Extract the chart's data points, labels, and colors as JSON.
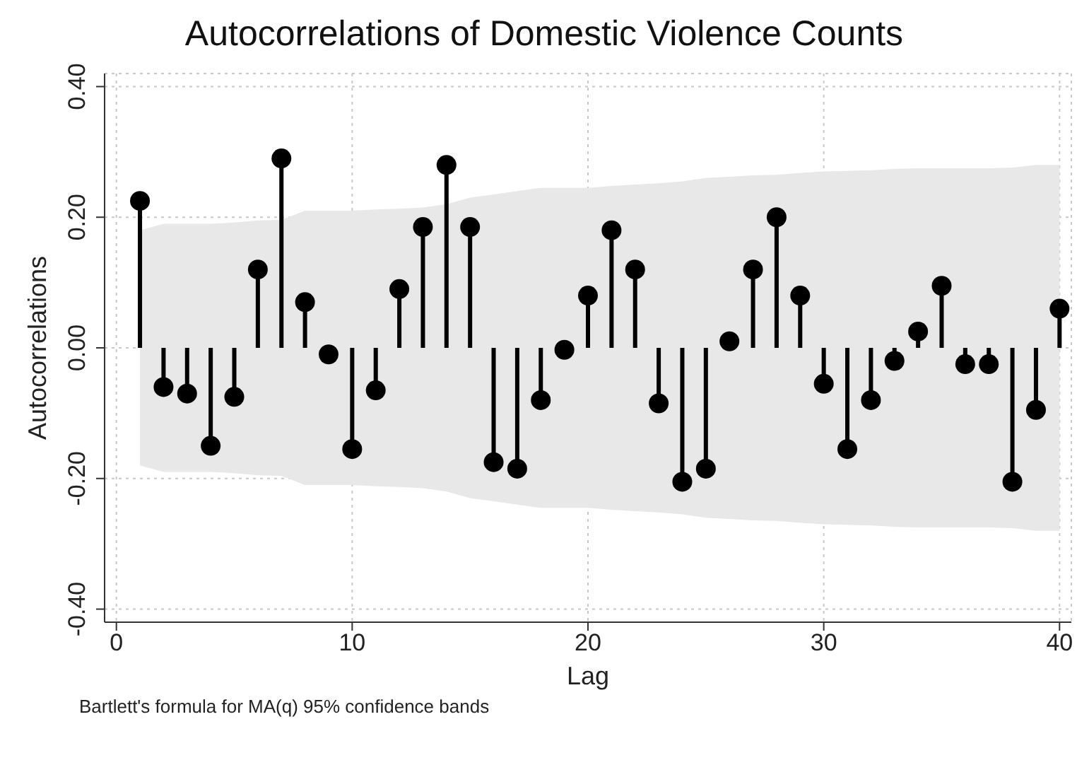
{
  "chart_data": {
    "type": "lollipop",
    "title": "Autocorrelations of Domestic Violence Counts",
    "xlabel": "Lag",
    "ylabel": "Autocorrelations",
    "x": [
      1,
      2,
      3,
      4,
      5,
      6,
      7,
      8,
      9,
      10,
      11,
      12,
      13,
      14,
      15,
      16,
      17,
      18,
      19,
      20,
      21,
      22,
      23,
      24,
      25,
      26,
      27,
      28,
      29,
      30,
      31,
      32,
      33,
      34,
      35,
      36,
      37,
      38,
      39,
      40
    ],
    "series": [
      {
        "color": "#000000",
        "values": [
          0.225,
          -0.06,
          -0.07,
          -0.15,
          -0.075,
          0.12,
          0.29,
          0.07,
          -0.01,
          -0.155,
          -0.065,
          0.09,
          0.185,
          0.28,
          0.185,
          -0.175,
          -0.185,
          -0.08,
          -0.003,
          0.08,
          0.18,
          0.12,
          -0.085,
          -0.205,
          -0.185,
          0.01,
          0.12,
          0.2,
          0.08,
          -0.055,
          -0.155,
          -0.08,
          -0.02,
          0.025,
          0.095,
          -0.025,
          -0.025,
          -0.205,
          -0.095,
          0.06
        ],
        "lower": [
          -0.18,
          -0.19,
          -0.19,
          -0.19,
          -0.192,
          -0.195,
          -0.196,
          -0.21,
          -0.21,
          -0.21,
          -0.212,
          -0.213,
          -0.215,
          -0.22,
          -0.23,
          -0.235,
          -0.24,
          -0.245,
          -0.245,
          -0.245,
          -0.248,
          -0.25,
          -0.252,
          -0.255,
          -0.26,
          -0.262,
          -0.264,
          -0.265,
          -0.268,
          -0.27,
          -0.271,
          -0.272,
          -0.274,
          -0.275,
          -0.275,
          -0.275,
          -0.275,
          -0.276,
          -0.28,
          -0.28
        ],
        "upper": [
          0.18,
          0.19,
          0.19,
          0.19,
          0.192,
          0.195,
          0.196,
          0.21,
          0.21,
          0.21,
          0.212,
          0.213,
          0.215,
          0.22,
          0.23,
          0.235,
          0.24,
          0.245,
          0.245,
          0.245,
          0.248,
          0.25,
          0.252,
          0.255,
          0.26,
          0.262,
          0.264,
          0.265,
          0.268,
          0.27,
          0.271,
          0.272,
          0.274,
          0.275,
          0.275,
          0.275,
          0.275,
          0.276,
          0.28,
          0.28
        ]
      }
    ],
    "xlim": [
      -0.5,
      40.5
    ],
    "xticks": [
      0,
      10,
      20,
      30,
      40
    ],
    "ylim": [
      -0.42,
      0.42
    ],
    "yticks": [
      {
        "value": -0.4,
        "label": "-0.40"
      },
      {
        "value": -0.2,
        "label": "-0.20"
      },
      {
        "value": 0,
        "label": "0.00"
      },
      {
        "value": 0.2,
        "label": "0.20"
      },
      {
        "value": 0.4,
        "label": "0.40"
      }
    ],
    "grid": true,
    "marker": "circle",
    "annotations": [
      "Bartlett's formula for MA(q) 95% confidence bands"
    ]
  }
}
